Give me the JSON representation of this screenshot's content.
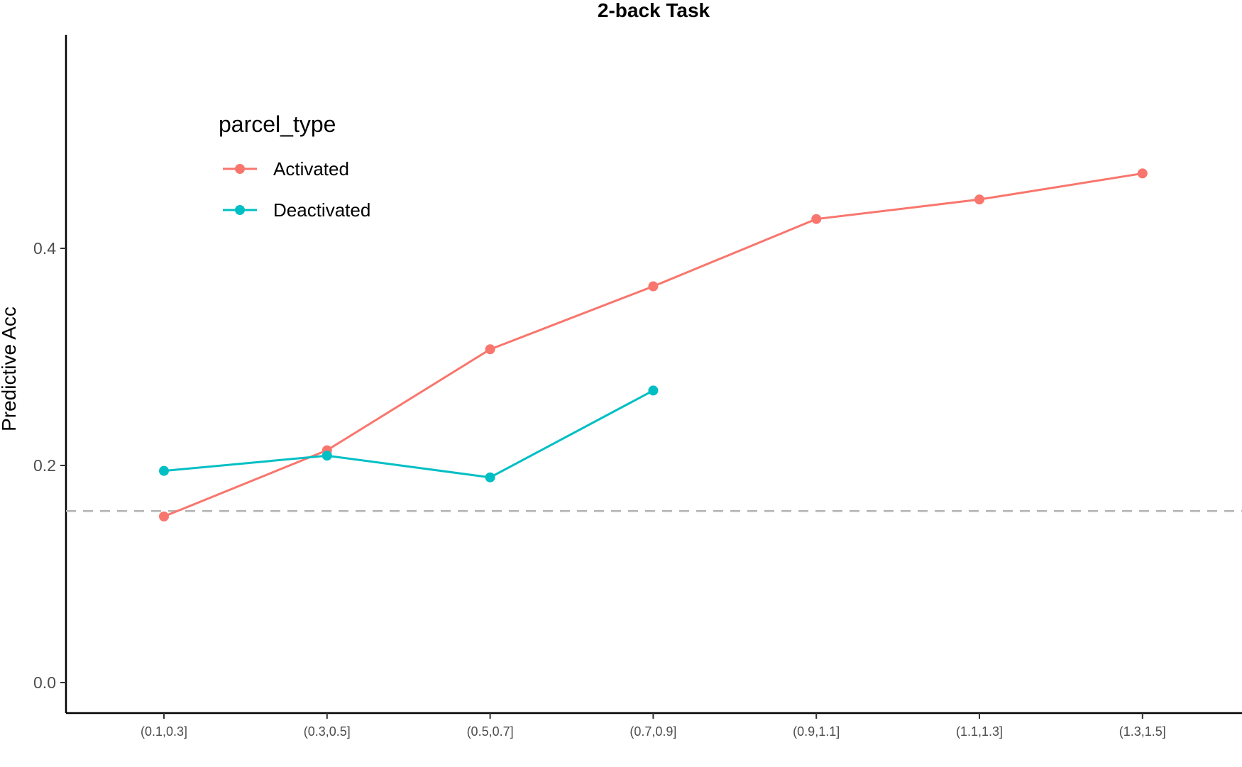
{
  "chart_data": {
    "type": "line",
    "title": "2-back Task",
    "xlabel": "",
    "ylabel": "Predictive Acc",
    "categories": [
      "(0.1,0.3]",
      "(0.3,0.5]",
      "(0.5,0.7]",
      "(0.7,0.9]",
      "(0.9,1.1]",
      "(1.1,1.3]",
      "(1.3,1.5]"
    ],
    "yticks": [
      "0.0",
      "0.2",
      "0.4"
    ],
    "ytick_values": [
      0.0,
      0.2,
      0.4
    ],
    "ylim": [
      -0.028,
      0.595
    ],
    "reference_line": {
      "y": 0.158,
      "style": "dashed",
      "color": "#b3b3b3"
    },
    "grid": false,
    "legend": {
      "title": "parcel_type",
      "placement": "top-left"
    },
    "series": [
      {
        "name": "Activated",
        "color": "#F8766D",
        "values": [
          0.153,
          0.214,
          0.307,
          0.365,
          0.427,
          0.445,
          0.469
        ]
      },
      {
        "name": "Deactivated",
        "color": "#00BFC4",
        "values": [
          0.195,
          0.209,
          0.189,
          0.269,
          null,
          null,
          null
        ]
      }
    ]
  }
}
